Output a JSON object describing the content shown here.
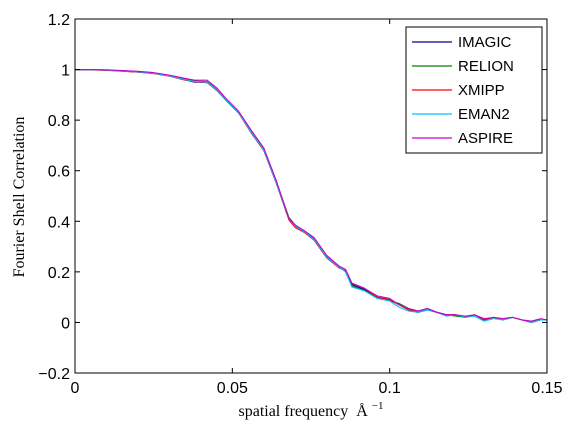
{
  "chart_data": {
    "type": "line",
    "title": "",
    "xlabel": "spatial frequency",
    "xlabel_unit_base": "Å",
    "xlabel_unit_exp": "−1",
    "ylabel": "Fourier Shell Correlation",
    "xlim": [
      0,
      0.15
    ],
    "ylim": [
      -0.2,
      1.2
    ],
    "xticks": [
      0,
      0.05,
      0.1,
      0.15
    ],
    "xtick_labels": [
      "0",
      "0.05",
      "0.1",
      "0.15"
    ],
    "yticks": [
      -0.2,
      0,
      0.2,
      0.4,
      0.6,
      0.8,
      1,
      1.2
    ],
    "ytick_labels": [
      "−0.2",
      "0",
      "0.2",
      "0.4",
      "0.6",
      "0.8",
      "1",
      "1.2"
    ],
    "grid": false,
    "legend_position": "top-right",
    "series": [
      {
        "name": "IMAGIC",
        "color": "#00008b",
        "x": [
          0,
          0.01,
          0.02,
          0.025,
          0.03,
          0.035,
          0.038,
          0.042,
          0.045,
          0.048,
          0.052,
          0.056,
          0.06,
          0.064,
          0.068,
          0.07,
          0.073,
          0.076,
          0.08,
          0.084,
          0.086,
          0.088,
          0.092,
          0.096,
          0.1,
          0.103,
          0.106,
          0.109,
          0.112,
          0.115,
          0.118,
          0.121,
          0.124,
          0.127,
          0.13,
          0.133,
          0.136,
          0.139,
          0.142,
          0.145,
          0.148,
          0.15
        ],
        "y": [
          1,
          0.998,
          0.99,
          0.985,
          0.975,
          0.96,
          0.95,
          0.95,
          0.92,
          0.88,
          0.83,
          0.75,
          0.68,
          0.55,
          0.41,
          0.38,
          0.36,
          0.33,
          0.26,
          0.22,
          0.2,
          0.15,
          0.13,
          0.1,
          0.09,
          0.07,
          0.05,
          0.04,
          0.05,
          0.04,
          0.03,
          0.03,
          0.02,
          0.03,
          0.01,
          0.02,
          0.01,
          0.02,
          0.01,
          0.0,
          0.01,
          0.01
        ]
      },
      {
        "name": "RELION",
        "color": "#008000",
        "x": [
          0,
          0.01,
          0.02,
          0.025,
          0.03,
          0.035,
          0.038,
          0.042,
          0.045,
          0.048,
          0.052,
          0.056,
          0.06,
          0.064,
          0.068,
          0.07,
          0.073,
          0.076,
          0.08,
          0.084,
          0.086,
          0.088,
          0.092,
          0.096,
          0.1,
          0.103,
          0.106,
          0.109,
          0.112,
          0.115,
          0.118,
          0.121,
          0.124,
          0.127,
          0.13,
          0.133,
          0.136,
          0.139,
          0.142,
          0.145,
          0.148,
          0.15
        ],
        "y": [
          1,
          0.998,
          0.992,
          0.986,
          0.976,
          0.962,
          0.955,
          0.952,
          0.922,
          0.88,
          0.83,
          0.755,
          0.685,
          0.555,
          0.415,
          0.385,
          0.355,
          0.33,
          0.26,
          0.22,
          0.2,
          0.145,
          0.125,
          0.1,
          0.085,
          0.075,
          0.055,
          0.045,
          0.055,
          0.04,
          0.03,
          0.025,
          0.02,
          0.03,
          0.01,
          0.02,
          0.015,
          0.02,
          0.01,
          0.005,
          0.01,
          0.01
        ]
      },
      {
        "name": "XMIPP",
        "color": "#ff0000",
        "x": [
          0,
          0.01,
          0.02,
          0.025,
          0.03,
          0.035,
          0.038,
          0.042,
          0.045,
          0.048,
          0.052,
          0.056,
          0.06,
          0.064,
          0.068,
          0.07,
          0.073,
          0.076,
          0.08,
          0.084,
          0.086,
          0.088,
          0.092,
          0.096,
          0.1,
          0.103,
          0.106,
          0.109,
          0.112,
          0.115,
          0.118,
          0.121,
          0.124,
          0.127,
          0.13,
          0.133,
          0.136,
          0.139,
          0.142,
          0.145,
          0.148,
          0.15
        ],
        "y": [
          1,
          0.997,
          0.99,
          0.984,
          0.974,
          0.958,
          0.952,
          0.948,
          0.918,
          0.878,
          0.828,
          0.75,
          0.68,
          0.55,
          0.405,
          0.375,
          0.355,
          0.325,
          0.255,
          0.215,
          0.205,
          0.155,
          0.135,
          0.1,
          0.09,
          0.07,
          0.05,
          0.04,
          0.05,
          0.04,
          0.03,
          0.03,
          0.02,
          0.03,
          0.01,
          0.02,
          0.01,
          0.02,
          0.01,
          0.0,
          0.01,
          0.01
        ]
      },
      {
        "name": "EMAN2",
        "color": "#00bfff",
        "x": [
          0,
          0.01,
          0.02,
          0.025,
          0.03,
          0.035,
          0.038,
          0.042,
          0.045,
          0.048,
          0.052,
          0.056,
          0.06,
          0.064,
          0.068,
          0.07,
          0.073,
          0.076,
          0.08,
          0.084,
          0.086,
          0.088,
          0.092,
          0.096,
          0.1,
          0.103,
          0.106,
          0.109,
          0.112,
          0.115,
          0.118,
          0.121,
          0.124,
          0.127,
          0.13,
          0.133,
          0.136,
          0.139,
          0.142,
          0.145,
          0.148,
          0.15
        ],
        "y": [
          1,
          0.998,
          0.991,
          0.985,
          0.975,
          0.96,
          0.953,
          0.95,
          0.92,
          0.88,
          0.83,
          0.752,
          0.682,
          0.552,
          0.41,
          0.38,
          0.358,
          0.328,
          0.258,
          0.218,
          0.2,
          0.14,
          0.125,
          0.095,
          0.085,
          0.06,
          0.045,
          0.04,
          0.05,
          0.04,
          0.025,
          0.03,
          0.02,
          0.025,
          0.005,
          0.015,
          0.01,
          0.02,
          0.01,
          0.0,
          0.01,
          0.01
        ]
      },
      {
        "name": "ASPIRE",
        "color": "#cc00cc",
        "x": [
          0,
          0.01,
          0.02,
          0.025,
          0.03,
          0.035,
          0.038,
          0.042,
          0.045,
          0.048,
          0.052,
          0.056,
          0.06,
          0.064,
          0.068,
          0.07,
          0.073,
          0.076,
          0.08,
          0.084,
          0.086,
          0.088,
          0.092,
          0.096,
          0.1,
          0.103,
          0.106,
          0.109,
          0.112,
          0.115,
          0.118,
          0.121,
          0.124,
          0.127,
          0.13,
          0.133,
          0.136,
          0.139,
          0.142,
          0.145,
          0.148,
          0.15
        ],
        "y": [
          1,
          0.999,
          0.993,
          0.988,
          0.978,
          0.965,
          0.958,
          0.958,
          0.928,
          0.885,
          0.835,
          0.76,
          0.69,
          0.56,
          0.41,
          0.385,
          0.362,
          0.335,
          0.265,
          0.222,
          0.21,
          0.155,
          0.135,
          0.105,
          0.095,
          0.07,
          0.055,
          0.045,
          0.055,
          0.04,
          0.03,
          0.03,
          0.025,
          0.03,
          0.015,
          0.02,
          0.015,
          0.02,
          0.01,
          0.005,
          0.015,
          0.01
        ]
      }
    ]
  }
}
